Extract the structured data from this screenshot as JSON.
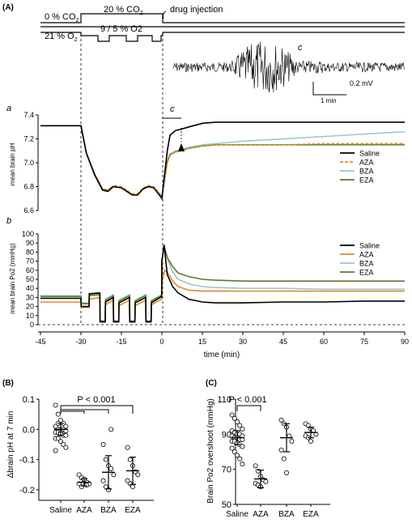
{
  "panel_labels": {
    "A": "(A)",
    "B": "(B)",
    "C": "(C)",
    "a": "a",
    "b": "b",
    "c": "c",
    "c_trace": "c"
  },
  "protocol": {
    "co2_low": "0 % CO2",
    "co2_high": "20 % CO2",
    "o2_base": "21 % O2",
    "o2_hypoxia": "9 / 5 % O2",
    "drug_injection": "drug injection"
  },
  "ecog_scale": {
    "voltage": "0.2 mV",
    "time": "1 min"
  },
  "colors": {
    "saline": "#000000",
    "aza": "#e08a2c",
    "bza": "#9cc4cc",
    "eza": "#5f7a2a",
    "marker": "#999999"
  },
  "chart_data": [
    {
      "type": "line",
      "id": "ph_trace",
      "ylabel": "mean brain pH",
      "xlim": [
        -45,
        90
      ],
      "ylim": [
        6.6,
        7.4
      ],
      "yticks": [
        "6.6",
        "6.8",
        "7.0",
        "7.2",
        "7.4"
      ],
      "series": [
        {
          "name": "Saline",
          "x": [
            -45,
            -30,
            -28,
            -25,
            -22,
            -20,
            -18,
            -15,
            -13,
            -11,
            -9,
            -7,
            -5,
            -3,
            -1,
            0,
            1,
            2,
            3,
            5,
            7,
            10,
            15,
            20,
            30,
            45,
            60,
            75,
            90
          ],
          "y": [
            7.31,
            7.31,
            7.08,
            6.9,
            6.77,
            6.76,
            6.8,
            6.79,
            6.76,
            6.73,
            6.73,
            6.78,
            6.8,
            6.79,
            6.73,
            6.7,
            6.9,
            7.1,
            7.23,
            7.27,
            7.28,
            7.3,
            7.33,
            7.34,
            7.34,
            7.34,
            7.34,
            7.34,
            7.34
          ]
        },
        {
          "name": "AZA",
          "x": [
            -45,
            -30,
            -28,
            -25,
            -22,
            -20,
            -18,
            -15,
            -13,
            -11,
            -9,
            -7,
            -5,
            -3,
            -1,
            0,
            1,
            2,
            3,
            5,
            7,
            10,
            15,
            20,
            30,
            45,
            60,
            75,
            90
          ],
          "y": [
            7.31,
            7.31,
            7.08,
            6.91,
            6.78,
            6.77,
            6.81,
            6.8,
            6.77,
            6.74,
            6.74,
            6.79,
            6.81,
            6.8,
            6.75,
            6.72,
            6.85,
            7.0,
            7.06,
            7.09,
            7.1,
            7.12,
            7.14,
            7.15,
            7.15,
            7.15,
            7.16,
            7.16,
            7.16
          ]
        },
        {
          "name": "BZA",
          "x": [
            -45,
            -30,
            -28,
            -25,
            -22,
            -20,
            -18,
            -15,
            -13,
            -11,
            -9,
            -7,
            -5,
            -3,
            -1,
            0,
            1,
            2,
            3,
            5,
            7,
            10,
            15,
            20,
            30,
            45,
            60,
            75,
            90
          ],
          "y": [
            7.31,
            7.31,
            7.08,
            6.91,
            6.78,
            6.77,
            6.8,
            6.79,
            6.76,
            6.73,
            6.73,
            6.78,
            6.8,
            6.79,
            6.74,
            6.71,
            6.86,
            7.01,
            7.07,
            7.1,
            7.11,
            7.13,
            7.15,
            7.16,
            7.18,
            7.2,
            7.22,
            7.24,
            7.26
          ]
        },
        {
          "name": "EZA",
          "x": [
            -45,
            -30,
            -28,
            -25,
            -22,
            -20,
            -18,
            -15,
            -13,
            -11,
            -9,
            -7,
            -5,
            -3,
            -1,
            0,
            1,
            2,
            3,
            5,
            7,
            10,
            15,
            20,
            30,
            45,
            60,
            75,
            90
          ],
          "y": [
            7.31,
            7.31,
            7.08,
            6.91,
            6.78,
            6.77,
            6.8,
            6.79,
            6.76,
            6.73,
            6.73,
            6.78,
            6.8,
            6.79,
            6.74,
            6.71,
            6.86,
            7.01,
            7.07,
            7.09,
            7.1,
            7.12,
            7.14,
            7.15,
            7.15,
            7.15,
            7.15,
            7.15,
            7.15
          ]
        }
      ]
    },
    {
      "type": "line",
      "id": "po2_trace",
      "ylabel": "mean brain Po2 (mmHg)",
      "xlabel": "time (min)",
      "xlim": [
        -45,
        90
      ],
      "ylim": [
        0,
        100
      ],
      "yticks": [
        "0",
        "10",
        "20",
        "30",
        "40",
        "50",
        "60",
        "70",
        "80",
        "90",
        "100"
      ],
      "xticks": [
        "-45",
        "-30",
        "-15",
        "0",
        "15",
        "30",
        "45",
        "60",
        "75",
        "90"
      ],
      "series": [
        {
          "name": "Saline",
          "x": [
            -45,
            -30,
            -29.9,
            -27,
            -26.9,
            -23,
            -22.9,
            -21,
            -20.9,
            -18,
            -17.9,
            -16,
            -15.9,
            -12,
            -11.9,
            -10,
            -9.9,
            -6,
            -5.9,
            -4,
            -3.9,
            -0.1,
            0,
            0.8,
            2,
            4,
            6,
            10,
            15,
            20,
            30,
            45,
            60,
            75,
            90
          ],
          "y": [
            29,
            29,
            20,
            20,
            34,
            35,
            3,
            3,
            25,
            30,
            3,
            3,
            24,
            30,
            3,
            3,
            24,
            30,
            3,
            3,
            24,
            31,
            70,
            88,
            55,
            42,
            35,
            28,
            25,
            24,
            24,
            25,
            25,
            26,
            26
          ]
        },
        {
          "name": "AZA",
          "x": [
            -45,
            -30,
            -29.9,
            -27,
            -26.9,
            -23,
            -22.9,
            -21,
            -20.9,
            -18,
            -17.9,
            -16,
            -15.9,
            -12,
            -11.9,
            -10,
            -9.9,
            -6,
            -5.9,
            -4,
            -3.9,
            -0.1,
            0,
            1,
            2,
            4,
            6,
            10,
            15,
            20,
            30,
            45,
            60,
            75,
            90
          ],
          "y": [
            25,
            25,
            19,
            19,
            28,
            30,
            3,
            3,
            22,
            27,
            3,
            3,
            21,
            27,
            3,
            3,
            21,
            27,
            3,
            3,
            22,
            28,
            45,
            60,
            58,
            48,
            42,
            38,
            37,
            37,
            37,
            37,
            37,
            37,
            37
          ]
        },
        {
          "name": "BZA",
          "x": [
            -45,
            -30,
            -29.9,
            -27,
            -26.9,
            -23,
            -22.9,
            -21,
            -20.9,
            -18,
            -17.9,
            -16,
            -15.9,
            -12,
            -11.9,
            -10,
            -9.9,
            -6,
            -5.9,
            -4,
            -3.9,
            -0.1,
            0,
            0.8,
            2,
            4,
            6,
            10,
            15,
            20,
            30,
            45,
            60,
            75,
            90
          ],
          "y": [
            32,
            32,
            24,
            24,
            33,
            34,
            4,
            4,
            28,
            33,
            4,
            4,
            27,
            33,
            4,
            4,
            27,
            33,
            4,
            4,
            27,
            33,
            70,
            88,
            73,
            58,
            50,
            45,
            42,
            41,
            40,
            40,
            39,
            39,
            39
          ]
        },
        {
          "name": "EZA",
          "x": [
            -45,
            -30,
            -29.9,
            -27,
            -26.9,
            -23,
            -22.9,
            -21,
            -20.9,
            -18,
            -17.9,
            -16,
            -15.9,
            -12,
            -11.9,
            -10,
            -9.9,
            -6,
            -5.9,
            -4,
            -3.9,
            -0.1,
            0,
            0.8,
            2,
            4,
            6,
            10,
            15,
            20,
            30,
            45,
            60,
            75,
            90
          ],
          "y": [
            31,
            31,
            23,
            23,
            32,
            33,
            4,
            4,
            27,
            32,
            4,
            4,
            26,
            32,
            4,
            4,
            26,
            32,
            4,
            4,
            26,
            32,
            70,
            87,
            74,
            64,
            57,
            53,
            50,
            49,
            48,
            48,
            48,
            48,
            48
          ]
        }
      ]
    },
    {
      "type": "scatter",
      "id": "ph_7min",
      "ylabel": "Δbrain pH at 7 min",
      "categories": [
        "Saline",
        "AZA",
        "BZA",
        "EZA"
      ],
      "ylim": [
        -0.2,
        0.1
      ],
      "yticks": [
        "0.1",
        "0.0",
        "-0.1",
        "-0.2"
      ],
      "annotation": "P < 0.001",
      "points": [
        [
          0.08,
          0.05,
          0.03,
          0.02,
          0.01,
          0.01,
          0.0,
          0.0,
          0.0,
          -0.005,
          -0.01,
          -0.01,
          -0.01,
          -0.02,
          -0.02,
          -0.03,
          -0.03,
          -0.04,
          -0.05,
          -0.06,
          -0.07,
          0.02,
          -0.015
        ],
        [
          -0.15,
          -0.16,
          -0.17,
          -0.175,
          -0.18,
          -0.18,
          -0.19,
          -0.165,
          -0.185
        ],
        [
          -0.05,
          -0.1,
          -0.12,
          -0.13,
          -0.15,
          -0.17,
          -0.19,
          -0.2,
          0.0
        ],
        [
          -0.06,
          -0.1,
          -0.12,
          -0.14,
          -0.15,
          -0.17,
          -0.18,
          -0.19
        ]
      ],
      "mean": [
        0.0,
        -0.175,
        -0.142,
        -0.137
      ],
      "err": [
        0.02,
        0.012,
        0.055,
        0.045
      ]
    },
    {
      "type": "scatter",
      "id": "po2_overshoot",
      "ylabel": "Brain Po2 overshoot (mmHg)",
      "categories": [
        "Saline",
        "AZA",
        "BZA",
        "EZA"
      ],
      "ylim": [
        50,
        110
      ],
      "yticks": [
        "50",
        "70",
        "90",
        "110"
      ],
      "annotation": "P < 0.001",
      "points": [
        [
          101,
          99,
          97,
          95,
          93,
          92,
          91,
          90,
          90,
          89,
          89,
          88,
          88,
          87,
          87,
          86,
          86,
          85,
          84,
          83,
          82,
          80,
          78,
          76,
          73
        ],
        [
          72,
          69,
          66,
          64,
          63,
          62,
          61,
          60
        ],
        [
          98,
          96,
          94,
          89,
          86,
          81,
          76,
          68
        ],
        [
          96,
          95,
          93,
          92,
          90,
          89,
          88,
          86
        ]
      ],
      "mean": [
        88,
        64.5,
        88,
        91
      ],
      "err": [
        4,
        5,
        8,
        3
      ]
    }
  ]
}
